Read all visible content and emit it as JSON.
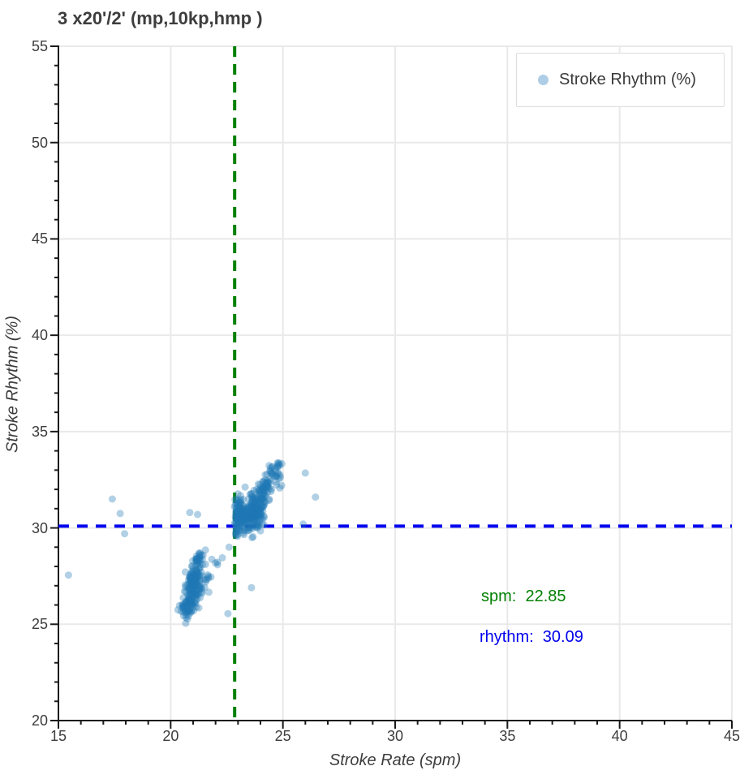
{
  "title": "3 x20'/2' (mp,10kp,hmp )",
  "legend": {
    "label": "Stroke Rhythm (%)",
    "marker_color": "#aecde6"
  },
  "annotations": [
    {
      "text": "spm:  22.85",
      "color": "#008000"
    },
    {
      "text": "rhythm:  30.09",
      "color": "#0000ee"
    }
  ],
  "chart_data": {
    "type": "scatter",
    "title": "3 x20'/2' (mp,10kp,hmp )",
    "xlabel": "Stroke Rate (spm)",
    "ylabel": "Stroke Rhythm (%)",
    "xlim": [
      15,
      45
    ],
    "ylim": [
      20,
      55
    ],
    "x_ticks": [
      15,
      20,
      25,
      30,
      35,
      40,
      45
    ],
    "y_ticks": [
      20,
      25,
      30,
      35,
      40,
      45,
      50,
      55
    ],
    "x_minor_step": 1,
    "y_minor_step": 1,
    "grid_on": true,
    "grid_color": "#e9e9e9",
    "spine_color": "#1a1a1a",
    "legend_position": "upper right",
    "reference_lines": [
      {
        "orientation": "vertical",
        "value": 22.85,
        "color": "#008000",
        "style": "dashed",
        "width": 4,
        "dash": "13 9",
        "label": "spm:  22.85"
      },
      {
        "orientation": "horizontal",
        "value": 30.09,
        "color": "#0000ee",
        "style": "dashed",
        "width": 4,
        "dash": "13 10",
        "label": "rhythm:  30.09"
      }
    ],
    "series": [
      {
        "name": "Stroke Rhythm (%)",
        "color": "#1f77b4",
        "opacity": 0.35,
        "marker_radius": 4.5,
        "seed": 20250412,
        "clusters": [
          {
            "name": "low-rate-main",
            "cx": 21.05,
            "cy": 27.4,
            "sx": 0.16,
            "sy": 0.62,
            "rho": 0.5,
            "n": 150,
            "clip": [
              20.55,
              21.55,
              26.0,
              28.75
            ]
          },
          {
            "name": "low-rate-tail",
            "cx": 20.7,
            "cy": 25.85,
            "sx": 0.18,
            "sy": 0.4,
            "rho": 0.4,
            "n": 55,
            "clip": [
              20.1,
              21.2,
              24.95,
              26.6
            ]
          },
          {
            "name": "low-rate-halo",
            "cx": 21.35,
            "cy": 27.0,
            "sx": 0.4,
            "sy": 0.95,
            "rho": 0.65,
            "n": 45,
            "clip": [
              20.3,
              22.25,
              25.2,
              29.0
            ]
          },
          {
            "name": "high-rate-main",
            "cx": 23.6,
            "cy": 30.75,
            "sx": 0.33,
            "sy": 0.48,
            "rho": 0.5,
            "n": 220,
            "clip": [
              22.8,
              24.45,
              29.45,
              32.0
            ]
          },
          {
            "name": "high-rate-edge",
            "cx": 23.0,
            "cy": 30.6,
            "sx": 0.12,
            "sy": 0.55,
            "rho": 0.2,
            "n": 80,
            "clip": [
              22.82,
              23.3,
              29.5,
              31.8
            ]
          },
          {
            "name": "high-rate-arm",
            "cx": 24.35,
            "cy": 32.4,
            "sx": 0.28,
            "sy": 0.55,
            "rho": 0.75,
            "n": 75,
            "clip": [
              23.75,
              25.2,
              31.2,
              33.7
            ]
          },
          {
            "name": "high-rate-halo",
            "cx": 23.8,
            "cy": 31.0,
            "sx": 0.55,
            "sy": 0.85,
            "rho": 0.55,
            "n": 55,
            "clip": [
              22.75,
              25.6,
              29.35,
              33.5
            ]
          }
        ],
        "outliers": [
          [
            15.45,
            27.55
          ],
          [
            17.4,
            31.5
          ],
          [
            17.75,
            30.75
          ],
          [
            17.95,
            29.7
          ],
          [
            20.85,
            30.8
          ],
          [
            21.2,
            30.7
          ],
          [
            22.3,
            28.45
          ],
          [
            22.6,
            29.0
          ],
          [
            22.55,
            25.55
          ],
          [
            23.6,
            26.9
          ],
          [
            25.9,
            30.2
          ],
          [
            26.45,
            31.6
          ],
          [
            26.0,
            32.85
          ]
        ]
      }
    ]
  }
}
